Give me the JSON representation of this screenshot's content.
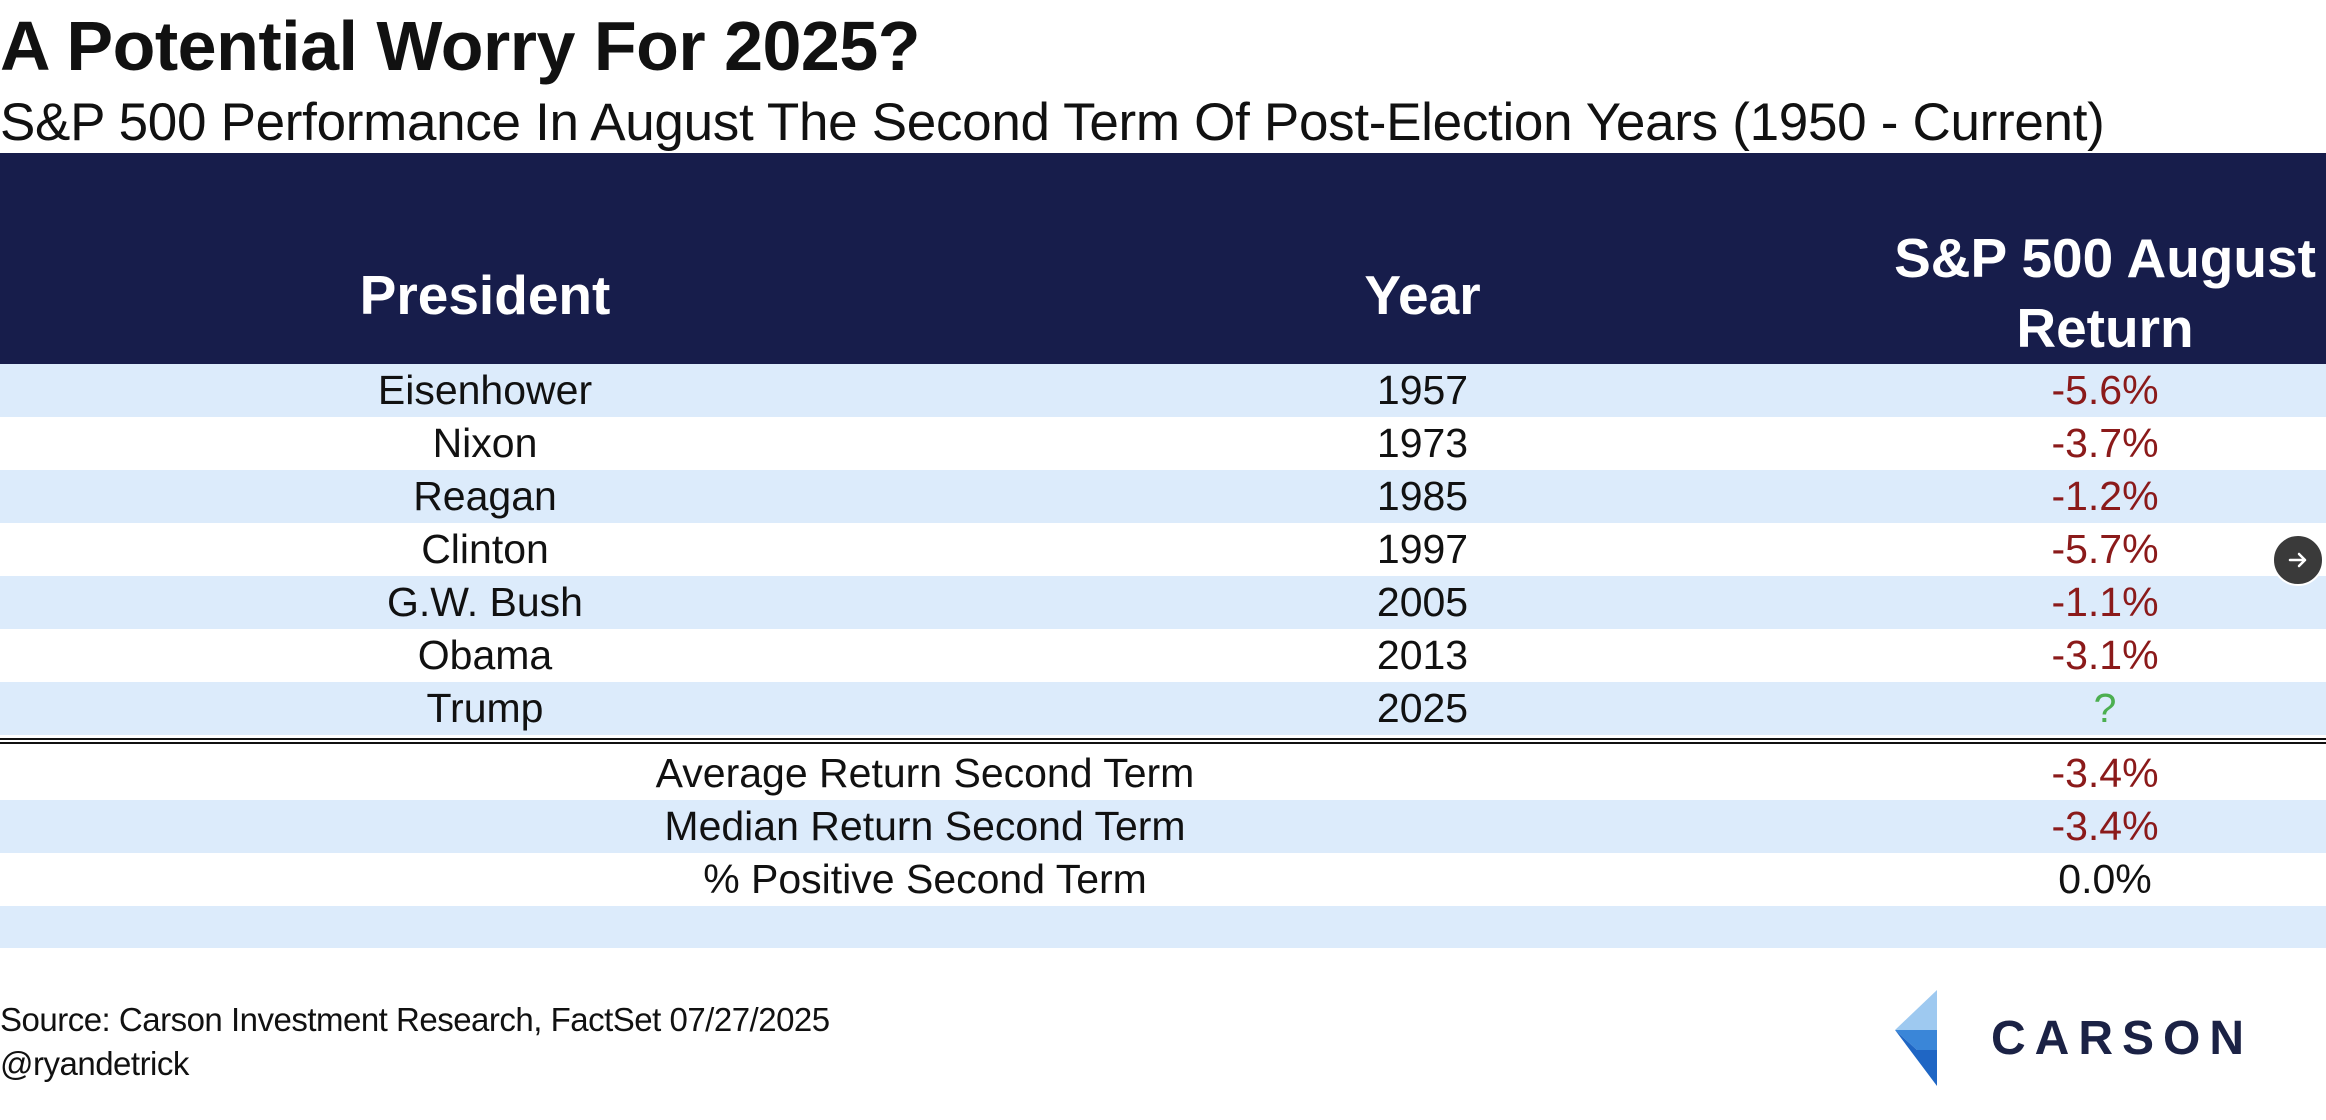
{
  "title": "A Potential Worry For 2025?",
  "subtitle": "S&P 500 Performance In August The Second Term Of Post-Election Years (1950 - Current)",
  "chart_data": {
    "type": "table",
    "title": "A Potential Worry For 2025?",
    "subtitle": "S&P 500 Performance In August The Second Term Of Post-Election Years (1950 - Current)",
    "columns": [
      "President",
      "Year",
      "S&P 500 August Return"
    ],
    "rows": [
      {
        "president": "Eisenhower",
        "year": "1957",
        "return": "-5.6%"
      },
      {
        "president": "Nixon",
        "year": "1973",
        "return": "-3.7%"
      },
      {
        "president": "Reagan",
        "year": "1985",
        "return": "-1.2%"
      },
      {
        "president": "Clinton",
        "year": "1997",
        "return": "-5.7%"
      },
      {
        "president": "G.W. Bush",
        "year": "2005",
        "return": "-1.1%"
      },
      {
        "president": "Obama",
        "year": "2013",
        "return": "-3.1%"
      },
      {
        "president": "Trump",
        "year": "2025",
        "return": "?"
      }
    ],
    "summary": [
      {
        "label": "Average Return Second Term",
        "value": "-3.4%"
      },
      {
        "label": "Median Return Second Term",
        "value": "-3.4%"
      },
      {
        "label": "% Positive Second Term",
        "value": "0.0%"
      }
    ]
  },
  "header": {
    "president": "President",
    "year": "Year",
    "return_line1": "S&P 500 August",
    "return_line2": "Return"
  },
  "colors": {
    "header_bg": "#171d4b",
    "row_shade": "#dcebfb",
    "negative": "#8b1a1a",
    "pending": "#4caf50",
    "logo_light_blue": "#9ec9f0",
    "logo_blue": "#3a86d8",
    "logo_dark": "#1b2245"
  },
  "source": "Source: Carson Investment Research, FactSet 07/27/2025",
  "handle": "@ryandetrick",
  "logo": {
    "text": "CARSON",
    "icon": "carson-chevron-icon"
  },
  "nav": {
    "icon": "arrow-right-icon"
  }
}
